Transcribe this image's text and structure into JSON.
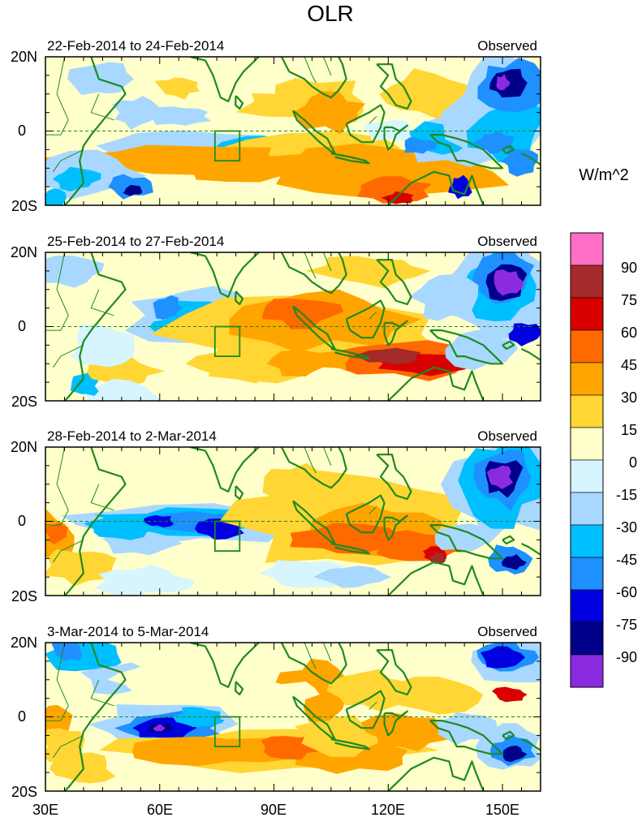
{
  "title": "OLR",
  "units_label": "W/m^2",
  "lat_labels": [
    "20N",
    "0",
    "20S"
  ],
  "lon_labels": [
    "30E",
    "60E",
    "90E",
    "120E",
    "150E"
  ],
  "panels": [
    {
      "date_range": "22-Feb-2014 to 24-Feb-2014",
      "label_right": "Observed"
    },
    {
      "date_range": "25-Feb-2014 to 27-Feb-2014",
      "label_right": "Observed"
    },
    {
      "date_range": "28-Feb-2014 to 2-Mar-2014",
      "label_right": "Observed"
    },
    {
      "date_range": "3-Mar-2014 to 5-Mar-2014",
      "label_right": "Observed"
    }
  ],
  "colorbar": {
    "labels": [
      "90",
      "75",
      "60",
      "45",
      "30",
      "15",
      "0",
      "-15",
      "-30",
      "-45",
      "-60",
      "-75",
      "-90"
    ],
    "colors": [
      "#ff6ec7",
      "#a52a2a",
      "#d90000",
      "#ff6a00",
      "#ffa500",
      "#ffd633",
      "#ffffcc",
      "#d6f5ff",
      "#a8d8ff",
      "#00bfff",
      "#1e90ff",
      "#0000e0",
      "#00008b",
      "#8a2be2"
    ]
  },
  "colors": {
    "coastline": "#1f8a1f",
    "equator": "#1f8a1f"
  }
}
